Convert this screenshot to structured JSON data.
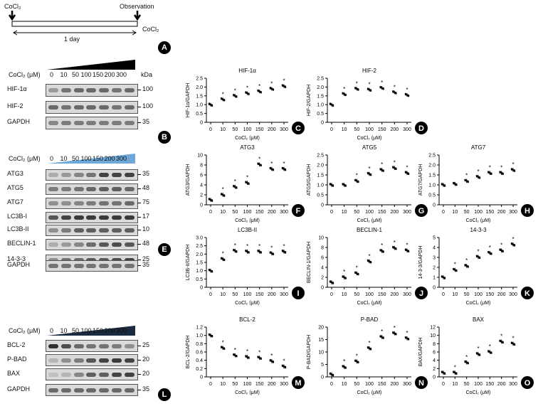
{
  "schematic": {
    "start_label": "CoCl₂",
    "end_label": "Observation",
    "right_label": "CoCl₂",
    "duration": "1 day",
    "panel": "A"
  },
  "conc_label": "CoCl₂ (μM)",
  "kda_label": "kDa",
  "doses": [
    "0",
    "10",
    "50",
    "100",
    "150",
    "200",
    "300"
  ],
  "blots": [
    {
      "panel": "B",
      "rows": [
        {
          "name": "HIF-1α",
          "kda": "100"
        },
        {
          "name": "HIF-2",
          "kda": "100"
        },
        {
          "name": "GAPDH",
          "kda": "35"
        }
      ]
    },
    {
      "panel": "E",
      "rows": [
        {
          "name": "ATG3",
          "kda": "35"
        },
        {
          "name": "ATG5",
          "kda": "48"
        },
        {
          "name": "ATG7",
          "kda": "75"
        },
        {
          "name": "LC3B-I",
          "kda": "17"
        },
        {
          "name": "LC3B-II",
          "kda": "10"
        },
        {
          "name": "BECLIN-1",
          "kda": "48"
        },
        {
          "name": "14-3-3",
          "kda": "25"
        },
        {
          "name": "GAPDH",
          "kda": "35"
        }
      ]
    },
    {
      "panel": "L",
      "rows": [
        {
          "name": "BCL-2",
          "kda": "25"
        },
        {
          "name": "P-BAD",
          "kda": "20"
        },
        {
          "name": "BAX",
          "kda": "20"
        },
        {
          "name": "GAPDH",
          "kda": "35"
        }
      ]
    }
  ],
  "chart_data": [
    {
      "panel": "C",
      "type": "scatter",
      "title": "HIF-1α",
      "ylabel": "HIF-1α/GAPDH",
      "xlabel": "CoCl₂ (μM)",
      "categories": [
        "0",
        "10",
        "50",
        "100",
        "150",
        "200",
        "300"
      ],
      "values": [
        1.0,
        1.3,
        1.5,
        1.65,
        1.75,
        1.9,
        2.05
      ],
      "ylim": [
        0,
        2.5
      ],
      "yticks": [
        "0",
        "0.5",
        "1.0",
        "1.5",
        "2.0",
        "2.5"
      ],
      "significant": [
        false,
        true,
        true,
        true,
        true,
        true,
        true
      ]
    },
    {
      "panel": "D",
      "type": "scatter",
      "title": "HIF-2",
      "ylabel": "HIF-2/GAPDH",
      "xlabel": "CoCl₂ (μM)",
      "categories": [
        "0",
        "10",
        "50",
        "100",
        "150",
        "200",
        "300"
      ],
      "values": [
        1.0,
        1.6,
        1.9,
        1.85,
        1.95,
        1.7,
        1.55
      ],
      "ylim": [
        0,
        2.5
      ],
      "yticks": [
        "0",
        "0.5",
        "1.0",
        "1.5",
        "2.0",
        "2.5"
      ],
      "significant": [
        false,
        true,
        true,
        true,
        true,
        true,
        true
      ]
    },
    {
      "panel": "F",
      "type": "scatter",
      "title": "ATG3",
      "ylabel": "ATG3/GAPDH",
      "xlabel": "CoCl₂ (μM)",
      "categories": [
        "0",
        "10",
        "50",
        "100",
        "150",
        "200",
        "300"
      ],
      "values": [
        1.0,
        2.0,
        3.6,
        4.4,
        8.1,
        7.2,
        7.2
      ],
      "ylim": [
        0,
        10
      ],
      "yticks": [
        "0",
        "2",
        "4",
        "6",
        "8",
        "10"
      ],
      "significant": [
        false,
        true,
        true,
        true,
        true,
        true,
        true
      ]
    },
    {
      "panel": "G",
      "type": "scatter",
      "title": "ATG5",
      "ylabel": "ATG5/GAPDH",
      "xlabel": "CoCl₂ (μM)",
      "categories": [
        "0",
        "10",
        "50",
        "100",
        "150",
        "200",
        "300"
      ],
      "values": [
        1.0,
        1.0,
        1.2,
        1.55,
        1.75,
        1.85,
        1.6
      ],
      "ylim": [
        0,
        2.5
      ],
      "yticks": [
        "0",
        "0.5",
        "1.0",
        "1.5",
        "2.0",
        "2.5"
      ],
      "significant": [
        false,
        false,
        true,
        true,
        true,
        true,
        true
      ]
    },
    {
      "panel": "H",
      "type": "scatter",
      "title": "ATG7",
      "ylabel": "ATG7/GAPDH",
      "xlabel": "CoCl₂ (μM)",
      "categories": [
        "0",
        "10",
        "50",
        "100",
        "150",
        "200",
        "300"
      ],
      "values": [
        1.0,
        1.05,
        1.2,
        1.4,
        1.6,
        1.6,
        1.75
      ],
      "ylim": [
        0,
        2.5
      ],
      "yticks": [
        "0",
        "0.5",
        "1.0",
        "1.5",
        "2.0",
        "2.5"
      ],
      "significant": [
        false,
        false,
        true,
        true,
        true,
        true,
        true
      ]
    },
    {
      "panel": "I",
      "type": "scatter",
      "title": "LC3B-II",
      "ylabel": "LC3B-II/GAPDH",
      "xlabel": "CoCl₂ (μM)",
      "categories": [
        "0",
        "10",
        "50",
        "100",
        "150",
        "200",
        "300"
      ],
      "values": [
        1.0,
        1.7,
        2.2,
        2.15,
        2.15,
        2.05,
        2.15
      ],
      "ylim": [
        0,
        3.0
      ],
      "yticks": [
        "0",
        "0.5",
        "1.0",
        "1.5",
        "2.0",
        "2.5",
        "3.0"
      ],
      "significant": [
        false,
        true,
        true,
        true,
        true,
        true,
        true
      ]
    },
    {
      "panel": "J",
      "type": "scatter",
      "title": "BECLIN-1",
      "ylabel": "BECLIN-1/GAPDH",
      "xlabel": "CoCl₂ (μM)",
      "categories": [
        "0",
        "10",
        "50",
        "100",
        "150",
        "200",
        "300"
      ],
      "values": [
        1.0,
        2.0,
        2.8,
        5.2,
        7.3,
        7.9,
        7.4
      ],
      "ylim": [
        0,
        10
      ],
      "yticks": [
        "0",
        "2",
        "4",
        "6",
        "8",
        "10"
      ],
      "significant": [
        false,
        true,
        true,
        true,
        true,
        true,
        true
      ]
    },
    {
      "panel": "K",
      "type": "scatter",
      "title": "14-3-3",
      "ylabel": "14-3-3/GAPDH",
      "xlabel": "CoCl₂ (μM)",
      "categories": [
        "0",
        "10",
        "50",
        "100",
        "150",
        "200",
        "300"
      ],
      "values": [
        1.0,
        1.75,
        2.15,
        3.05,
        3.45,
        3.7,
        4.3
      ],
      "ylim": [
        0,
        5
      ],
      "yticks": [
        "0",
        "1",
        "2",
        "3",
        "4",
        "5"
      ],
      "significant": [
        false,
        true,
        true,
        true,
        true,
        true,
        true
      ]
    },
    {
      "panel": "M",
      "type": "scatter",
      "title": "BCL-2",
      "ylabel": "BCL-2/GAPDH",
      "xlabel": "CoCl₂ (μM)",
      "categories": [
        "0",
        "10",
        "50",
        "100",
        "150",
        "200",
        "300"
      ],
      "values": [
        1.0,
        0.7,
        0.52,
        0.48,
        0.46,
        0.38,
        0.25
      ],
      "ylim": [
        0,
        1.2
      ],
      "yticks": [
        "0",
        "0.2",
        "0.4",
        "0.6",
        "0.8",
        "1.0",
        "1.2"
      ],
      "significant": [
        false,
        true,
        true,
        true,
        true,
        true,
        true
      ]
    },
    {
      "panel": "N",
      "type": "scatter",
      "title": "P-BAD",
      "ylabel": "P-BAD/GAPDH",
      "xlabel": "CoCl₂ (μM)",
      "categories": [
        "0",
        "10",
        "50",
        "100",
        "150",
        "200",
        "300"
      ],
      "values": [
        1.0,
        4.0,
        6.2,
        11.5,
        16.0,
        17.5,
        15.5
      ],
      "ylim": [
        0,
        20
      ],
      "yticks": [
        "0",
        "5",
        "10",
        "15",
        "20"
      ],
      "significant": [
        false,
        true,
        true,
        true,
        true,
        true,
        true
      ]
    },
    {
      "panel": "O",
      "type": "scatter",
      "title": "BAX",
      "ylabel": "BAX/GAPDH",
      "xlabel": "CoCl₂ (μM)",
      "categories": [
        "0",
        "10",
        "50",
        "100",
        "150",
        "200",
        "300"
      ],
      "values": [
        1.0,
        1.0,
        3.5,
        5.5,
        6.0,
        8.5,
        8.0
      ],
      "ylim": [
        0,
        12
      ],
      "yticks": [
        "0",
        "2",
        "4",
        "6",
        "8",
        "10",
        "12"
      ],
      "significant": [
        false,
        true,
        true,
        true,
        true,
        true,
        true
      ]
    }
  ]
}
